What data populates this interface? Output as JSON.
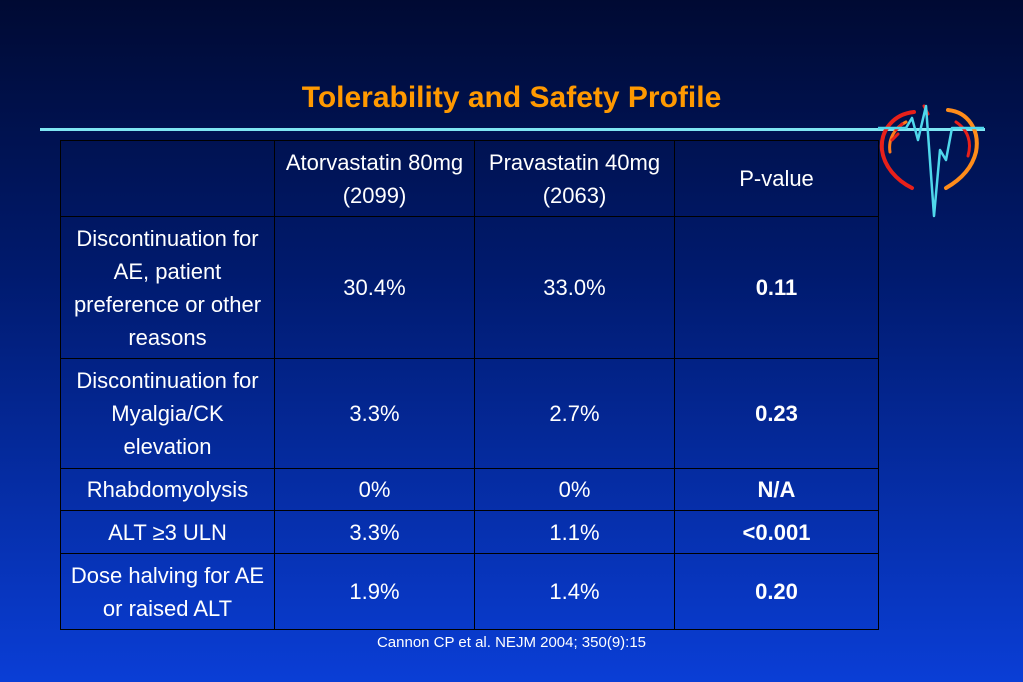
{
  "slide": {
    "title": "Tolerability and Safety Profile",
    "citation": "Cannon CP  et al. NEJM 2004; 350(9):15"
  },
  "table": {
    "headers": [
      "",
      "Atorvastatin 80mg (2099)",
      "Pravastatin 40mg (2063)",
      "P-value"
    ],
    "rows": [
      {
        "label": "Discontinuation for AE, patient preference or other reasons",
        "atorvastatin": "30.4%",
        "pravastatin": "33.0%",
        "p_value": "0.11"
      },
      {
        "label": "Discontinuation for Myalgia/CK elevation",
        "atorvastatin": "3.3%",
        "pravastatin": "2.7%",
        "p_value": "0.23"
      },
      {
        "label": "Rhabdomyolysis",
        "atorvastatin": "0%",
        "pravastatin": "0%",
        "p_value": "N/A"
      },
      {
        "label": "ALT ≥3 ULN",
        "atorvastatin": "3.3%",
        "pravastatin": "1.1%",
        "p_value": "<0.001"
      },
      {
        "label": "Dose halving for AE or raised ALT",
        "atorvastatin": "1.9%",
        "pravastatin": "1.4%",
        "p_value": "0.20"
      }
    ]
  },
  "colors": {
    "title": "#ff9900",
    "rule": "#7fe6f2",
    "p_value": "#ff1a1a",
    "highlight_row": "#33e0ff",
    "text": "#ffffff"
  },
  "logo": {
    "icon": "heart-ecg-logo-icon"
  }
}
